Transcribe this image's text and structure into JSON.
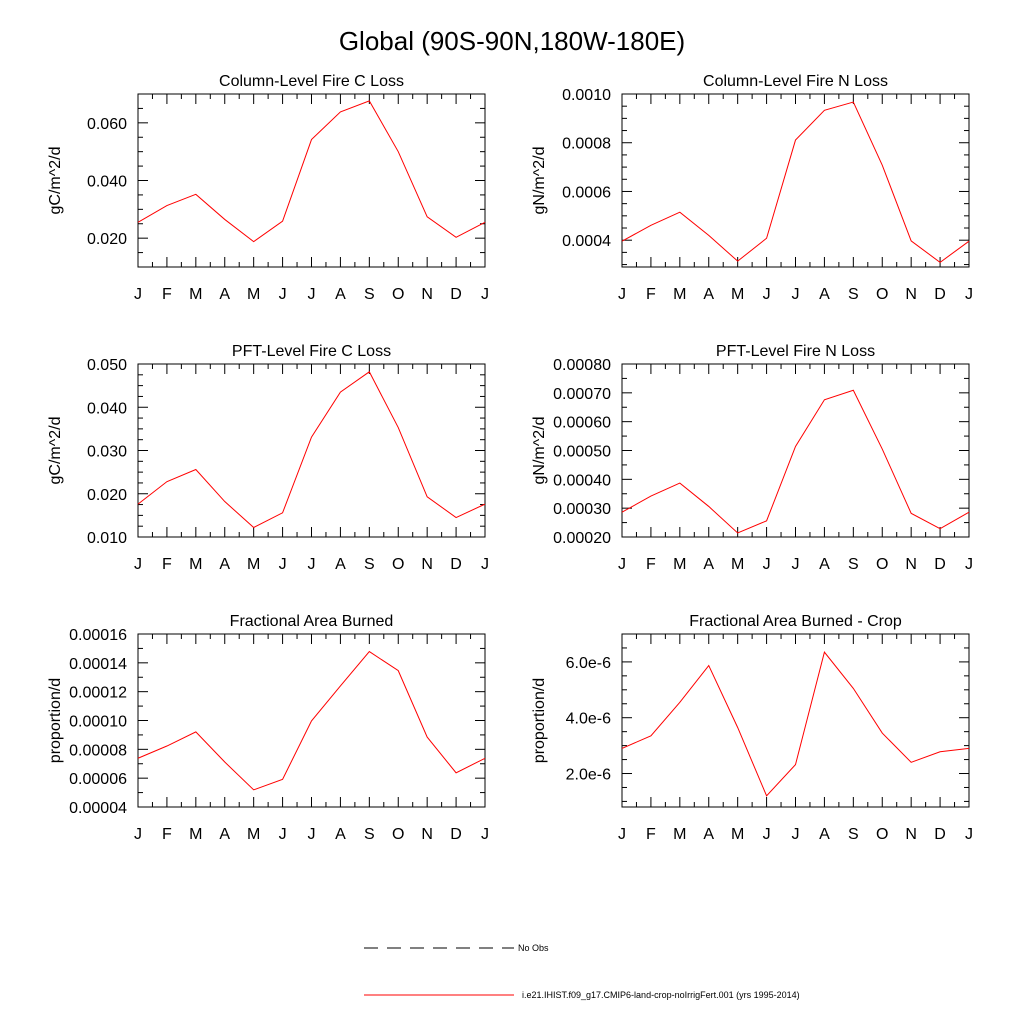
{
  "page": {
    "title": "Global (90S-90N,180W-180E)"
  },
  "legend": {
    "items": [
      {
        "label": "No Obs",
        "style": "dashed",
        "color": "#000000"
      },
      {
        "label": "i.e21.IHIST.f09_g17.CMIP6-land-crop-noIrrigFert.001 (yrs 1995-2014)",
        "style": "solid",
        "color": "#ff0000"
      }
    ]
  },
  "chart_data": [
    {
      "type": "line",
      "title": "Column-Level Fire C Loss",
      "ylabel": "gC/m^2/d",
      "categories": [
        "J",
        "F",
        "M",
        "A",
        "M",
        "J",
        "J",
        "A",
        "S",
        "O",
        "N",
        "D",
        "J"
      ],
      "ylim": [
        0.01,
        0.07
      ],
      "yticks": [
        0.02,
        0.04,
        0.06
      ],
      "ytick_labels": [
        "0.020",
        "0.040",
        "0.060"
      ],
      "yminor": [
        0.01,
        0.015,
        0.025,
        0.03,
        0.035,
        0.045,
        0.05,
        0.055,
        0.065,
        0.07
      ],
      "series": [
        {
          "color": "#ff0000",
          "values": [
            0.0255,
            0.0313,
            0.0352,
            0.0265,
            0.0188,
            0.0259,
            0.0542,
            0.0638,
            0.0676,
            0.05,
            0.0274,
            0.0203,
            0.0255
          ]
        }
      ]
    },
    {
      "type": "line",
      "title": "Column-Level Fire N Loss",
      "ylabel": "gN/m^2/d",
      "categories": [
        "J",
        "F",
        "M",
        "A",
        "M",
        "J",
        "J",
        "A",
        "S",
        "O",
        "N",
        "D",
        "J"
      ],
      "ylim": [
        0.00029,
        0.001
      ],
      "yticks": [
        0.0004,
        0.0006,
        0.0008,
        0.001
      ],
      "ytick_labels": [
        "0.0004",
        "0.0006",
        "0.0008",
        "0.0010"
      ],
      "yminor": [
        0.0003,
        0.00035,
        0.00045,
        0.0005,
        0.00055,
        0.00065,
        0.0007,
        0.00075,
        0.00085,
        0.0009,
        0.00095
      ],
      "series": [
        {
          "color": "#ff0000",
          "values": [
            0.000396,
            0.000461,
            0.000515,
            0.00042,
            0.000314,
            0.000408,
            0.000811,
            0.000933,
            0.000967,
            0.000708,
            0.000397,
            0.000309,
            0.000396
          ]
        }
      ]
    },
    {
      "type": "line",
      "title": "PFT-Level Fire C Loss",
      "ylabel": "gC/m^2/d",
      "categories": [
        "J",
        "F",
        "M",
        "A",
        "M",
        "J",
        "J",
        "A",
        "S",
        "O",
        "N",
        "D",
        "J"
      ],
      "ylim": [
        0.01,
        0.05
      ],
      "yticks": [
        0.01,
        0.02,
        0.03,
        0.04,
        0.05
      ],
      "ytick_labels": [
        "0.010",
        "0.020",
        "0.030",
        "0.040",
        "0.050"
      ],
      "yminor": [
        0.0125,
        0.015,
        0.0175,
        0.0225,
        0.025,
        0.0275,
        0.0325,
        0.035,
        0.0375,
        0.0425,
        0.045,
        0.0475
      ],
      "series": [
        {
          "color": "#ff0000",
          "values": [
            0.0176,
            0.0228,
            0.0256,
            0.0182,
            0.0122,
            0.0156,
            0.0331,
            0.0435,
            0.0482,
            0.0353,
            0.0193,
            0.0145,
            0.0176
          ]
        }
      ]
    },
    {
      "type": "line",
      "title": "PFT-Level Fire N Loss",
      "ylabel": "gN/m^2/d",
      "categories": [
        "J",
        "F",
        "M",
        "A",
        "M",
        "J",
        "J",
        "A",
        "S",
        "O",
        "N",
        "D",
        "J"
      ],
      "ylim": [
        0.0002,
        0.0008
      ],
      "yticks": [
        0.0002,
        0.0003,
        0.0004,
        0.0005,
        0.0006,
        0.0007,
        0.0008
      ],
      "ytick_labels": [
        "0.00020",
        "0.00030",
        "0.00040",
        "0.00050",
        "0.00060",
        "0.00070",
        "0.00080"
      ],
      "yminor": [
        0.00025,
        0.00035,
        0.00045,
        0.00055,
        0.00065,
        0.00075
      ],
      "series": [
        {
          "color": "#ff0000",
          "values": [
            0.000286,
            0.000342,
            0.000387,
            0.000306,
            0.000214,
            0.000256,
            0.000514,
            0.000676,
            0.000709,
            0.000505,
            0.000282,
            0.000229,
            0.000286
          ]
        }
      ]
    },
    {
      "type": "line",
      "title": "Fractional Area Burned",
      "ylabel": "proportion/d",
      "categories": [
        "J",
        "F",
        "M",
        "A",
        "M",
        "J",
        "J",
        "A",
        "S",
        "O",
        "N",
        "D",
        "J"
      ],
      "ylim": [
        4e-05,
        0.00016
      ],
      "yticks": [
        4e-05,
        6e-05,
        8e-05,
        0.0001,
        0.00012,
        0.00014,
        0.00016
      ],
      "ytick_labels": [
        "0.00004",
        "0.00006",
        "0.00008",
        "0.00010",
        "0.00012",
        "0.00014",
        "0.00016"
      ],
      "yminor": [
        5e-05,
        7e-05,
        9e-05,
        0.00011,
        0.00013,
        0.00015
      ],
      "series": [
        {
          "color": "#ff0000",
          "values": [
            7.38e-05,
            8.23e-05,
            9.21e-05,
            7.12e-05,
            5.19e-05,
            5.92e-05,
            9.97e-05,
            0.000124,
            0.0001478,
            0.0001346,
            8.85e-05,
            6.37e-05,
            7.38e-05
          ]
        }
      ]
    },
    {
      "type": "line",
      "title": "Fractional Area Burned - Crop",
      "ylabel": "proportion/d",
      "categories": [
        "J",
        "F",
        "M",
        "A",
        "M",
        "J",
        "J",
        "A",
        "S",
        "O",
        "N",
        "D",
        "J"
      ],
      "ylim": [
        8e-07,
        7e-06
      ],
      "yticks": [
        2e-06,
        4e-06,
        6e-06
      ],
      "ytick_labels": [
        "2.0e-6",
        "4.0e-6",
        "6.0e-6"
      ],
      "yminor": [
        1e-06,
        1.5e-06,
        2.5e-06,
        3e-06,
        3.5e-06,
        4.5e-06,
        5e-06,
        5.5e-06,
        6.5e-06,
        7e-06
      ],
      "series": [
        {
          "color": "#ff0000",
          "values": [
            2.9e-06,
            3.35e-06,
            4.55e-06,
            5.87e-06,
            3.65e-06,
            1.2e-06,
            2.32e-06,
            6.35e-06,
            5.05e-06,
            3.45e-06,
            2.4e-06,
            2.78e-06,
            2.9e-06
          ]
        }
      ]
    }
  ]
}
